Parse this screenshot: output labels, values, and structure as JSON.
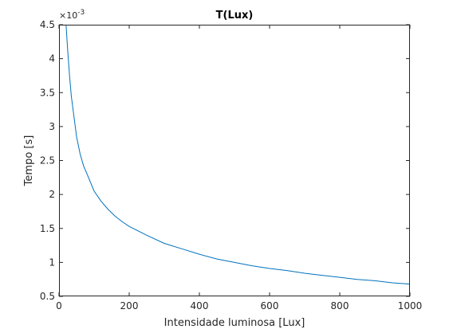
{
  "chart_data": {
    "type": "line",
    "title": "T(Lux)",
    "xlabel": "Intensidade luminosa [Lux]",
    "ylabel": "Tempo [s]",
    "y_exponent_base": "×10",
    "y_exponent_power": "-3",
    "xlim": [
      0,
      1000
    ],
    "ylim": [
      0.5,
      4.5
    ],
    "x_ticks": [
      0,
      200,
      400,
      600,
      800,
      1000
    ],
    "y_ticks": [
      0.5,
      1,
      1.5,
      2,
      2.5,
      3,
      3.5,
      4,
      4.5
    ],
    "x_tick_labels": [
      "0",
      "200",
      "400",
      "600",
      "800",
      "1000"
    ],
    "y_tick_labels": [
      "0.5",
      "1",
      "1.5",
      "2",
      "2.5",
      "3",
      "3.5",
      "4",
      "4.5"
    ],
    "grid": false,
    "box": true,
    "series": [
      {
        "color": "#0072BD",
        "x": [
          20,
          25,
          30,
          35,
          40,
          50,
          60,
          70,
          80,
          100,
          120,
          140,
          160,
          180,
          200,
          250,
          300,
          350,
          400,
          450,
          500,
          550,
          600,
          650,
          700,
          750,
          800,
          850,
          900,
          950,
          1000
        ],
        "y": [
          4.5,
          4.1,
          3.75,
          3.45,
          3.25,
          2.85,
          2.6,
          2.42,
          2.3,
          2.05,
          1.9,
          1.78,
          1.68,
          1.6,
          1.53,
          1.4,
          1.28,
          1.2,
          1.12,
          1.05,
          1.0,
          0.95,
          0.91,
          0.88,
          0.84,
          0.81,
          0.78,
          0.75,
          0.73,
          0.7,
          0.68
        ]
      }
    ]
  }
}
